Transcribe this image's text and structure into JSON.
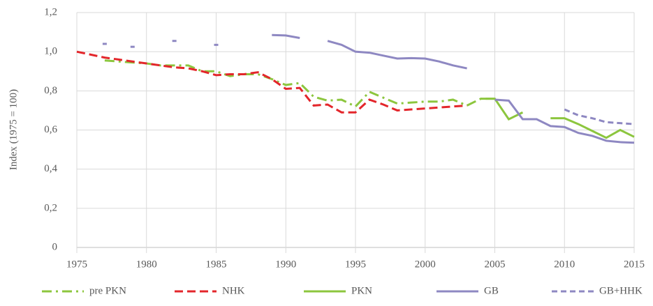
{
  "chart_data": {
    "type": "line",
    "y_label": "Index (1975 = 100)",
    "x": [
      1975,
      1976,
      1977,
      1978,
      1979,
      1980,
      1981,
      1982,
      1983,
      1984,
      1985,
      1986,
      1987,
      1988,
      1989,
      1990,
      1991,
      1992,
      1993,
      1994,
      1995,
      1996,
      1997,
      1998,
      1999,
      2000,
      2001,
      2002,
      2003,
      2004,
      2005,
      2006,
      2007,
      2008,
      2009,
      2010,
      2011,
      2012,
      2013,
      2014,
      2015
    ],
    "xlim": [
      1975,
      2015
    ],
    "xticks": [
      1975,
      1980,
      1985,
      1990,
      1995,
      2000,
      2005,
      2010,
      2015
    ],
    "ylim": [
      0,
      1.2
    ],
    "yticks": [
      0,
      {
        "value": 0.2,
        "label": "0,2"
      },
      {
        "value": 0.4,
        "label": "0,4"
      },
      {
        "value": 0.6,
        "label": "0,6"
      },
      {
        "value": 0.8,
        "label": "0,8"
      },
      {
        "value": 1,
        "label": "1,0"
      },
      {
        "value": 1.2,
        "label": "1,2"
      }
    ],
    "grid": true,
    "legend": "bottom",
    "series": [
      {
        "name": "pre PKN",
        "color": "#8cc63e",
        "dash": "14 6 3 6",
        "values": [
          null,
          null,
          0.955,
          0.95,
          0.945,
          0.94,
          0.93,
          0.93,
          0.93,
          0.9,
          0.9,
          0.875,
          0.885,
          0.885,
          0.86,
          0.83,
          0.84,
          0.77,
          0.75,
          0.755,
          0.72,
          0.795,
          0.765,
          0.735,
          0.74,
          0.745,
          0.745,
          0.755,
          0.725,
          0.76,
          0.76,
          null,
          null,
          null,
          null,
          null,
          null,
          null,
          null,
          null,
          null
        ]
      },
      {
        "name": "NHK",
        "color": "#e3262b",
        "dash": "12 6",
        "values": [
          1.0,
          0.985,
          0.97,
          0.96,
          0.95,
          0.94,
          0.93,
          0.92,
          0.915,
          0.9,
          0.88,
          0.885,
          0.885,
          0.895,
          0.86,
          0.81,
          0.815,
          0.725,
          0.73,
          0.69,
          0.69,
          0.755,
          0.73,
          0.7,
          0.705,
          0.71,
          0.715,
          0.72,
          0.725,
          null,
          null,
          null,
          null,
          null,
          null,
          null,
          null,
          null,
          null,
          null,
          null
        ]
      },
      {
        "name": "PKN",
        "color": "#8cc63e",
        "dash": "none",
        "values": [
          null,
          null,
          null,
          null,
          null,
          null,
          null,
          null,
          null,
          null,
          null,
          null,
          null,
          null,
          null,
          null,
          null,
          null,
          null,
          null,
          null,
          null,
          null,
          null,
          null,
          null,
          null,
          null,
          null,
          0.76,
          0.76,
          0.655,
          0.69,
          null,
          0.66,
          0.66,
          0.63,
          0.595,
          0.56,
          0.6,
          0.565
        ]
      },
      {
        "name": "GB",
        "color": "#8e88c2",
        "dash": "none",
        "values": [
          null,
          null,
          1.04,
          null,
          1.025,
          null,
          null,
          1.055,
          null,
          null,
          1.035,
          null,
          null,
          null,
          1.085,
          1.083,
          1.07,
          null,
          1.055,
          1.035,
          1.0,
          0.995,
          0.98,
          0.965,
          0.967,
          0.965,
          0.95,
          0.93,
          0.915,
          null,
          0.755,
          0.75,
          0.655,
          0.655,
          0.62,
          0.615,
          0.585,
          0.57,
          0.545,
          0.538,
          0.535
        ]
      },
      {
        "name": "GB+HHK",
        "color": "#8e88c2",
        "dash": "8 5",
        "values": [
          null,
          null,
          null,
          null,
          null,
          null,
          null,
          null,
          null,
          null,
          null,
          null,
          null,
          null,
          null,
          null,
          null,
          null,
          null,
          null,
          null,
          null,
          null,
          null,
          null,
          null,
          null,
          null,
          null,
          null,
          null,
          null,
          null,
          null,
          null,
          0.705,
          0.675,
          0.66,
          0.64,
          0.635,
          0.63
        ]
      }
    ]
  }
}
